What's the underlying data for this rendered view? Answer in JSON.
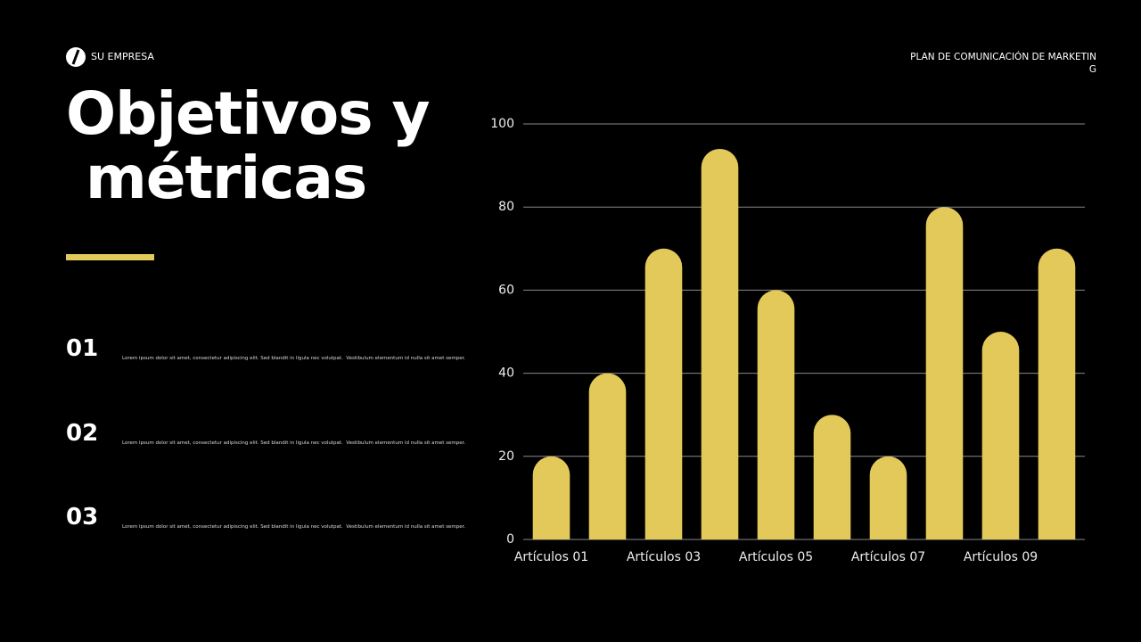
{
  "header": {
    "company": "SU EMPRESA",
    "subtitle": "PLAN DE COMUNICACIÓN DE MARKETING"
  },
  "title_lines": [
    "Objetivos y",
    " métricas"
  ],
  "items": [
    {
      "number": "01",
      "text": "Lorem ipsum dolor sit amet, consectetur adipiscing elit. Sed blandit in ligula nec volutpat.  Vestibulum elementum id nulla sit amet semper."
    },
    {
      "number": "02",
      "text": "Lorem ipsum dolor sit amet, consectetur adipiscing elit. Sed blandit in ligula nec volutpat.  Vestibulum elementum id nulla sit amet semper."
    },
    {
      "number": "03",
      "text": "Lorem ipsum dolor sit amet, consectetur adipiscing elit. Sed blandit in ligula nec volutpat.  Vestibulum elementum id nulla sit amet semper."
    }
  ],
  "chart_data": {
    "type": "bar",
    "categories": [
      "Artículos 01",
      null,
      "Artículos 03",
      null,
      "Artículos 05",
      null,
      "Artículos 07",
      null,
      "Artículos 09",
      null
    ],
    "values": [
      20,
      40,
      70,
      94,
      60,
      30,
      20,
      80,
      50,
      70
    ],
    "color": "#e3c95a",
    "ylim": [
      0,
      100
    ],
    "yticks": [
      0,
      20,
      40,
      60,
      80,
      100
    ],
    "grid": true
  }
}
